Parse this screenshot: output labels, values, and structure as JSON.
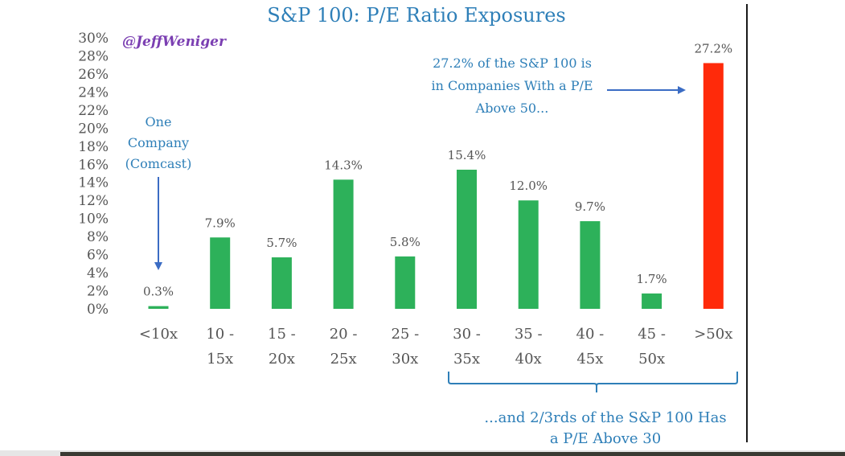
{
  "chart_data": {
    "type": "bar",
    "title": "S&P 100: P/E Ratio Exposures",
    "handle": "@JeffWeniger",
    "ylim": [
      0,
      30
    ],
    "yticks": [
      "0%",
      "2%",
      "4%",
      "6%",
      "8%",
      "10%",
      "12%",
      "14%",
      "16%",
      "18%",
      "20%",
      "22%",
      "24%",
      "26%",
      "28%",
      "30%"
    ],
    "categories": [
      {
        "line1": "<10x",
        "line2": ""
      },
      {
        "line1": "10 -",
        "line2": "15x"
      },
      {
        "line1": "15 -",
        "line2": "20x"
      },
      {
        "line1": "20 -",
        "line2": "25x"
      },
      {
        "line1": "25 -",
        "line2": "30x"
      },
      {
        "line1": "30 -",
        "line2": "35x"
      },
      {
        "line1": "35 -",
        "line2": "40x"
      },
      {
        "line1": "40 -",
        "line2": "45x"
      },
      {
        "line1": "45 -",
        "line2": "50x"
      },
      {
        "line1": ">50x",
        "line2": ""
      }
    ],
    "values": [
      0.3,
      7.9,
      5.7,
      14.3,
      5.8,
      15.4,
      12.0,
      9.7,
      1.7,
      27.2
    ],
    "labels": [
      "0.3%",
      "7.9%",
      "5.7%",
      "14.3%",
      "5.8%",
      "15.4%",
      "12.0%",
      "9.7%",
      "1.7%",
      "27.2%"
    ],
    "highlight_index": 9,
    "colors": {
      "bar": "#2db15a",
      "highlight": "#ff2a0a",
      "title": "#2e7fb8",
      "annotation": "#2e7fb8",
      "handle": "#7b3fb2"
    },
    "annotations": {
      "comcast": [
        "One",
        "Company",
        "(Comcast)"
      ],
      "above50": [
        "27.2% of the S&P 100 is",
        "in Companies With a P/E",
        "Above 50..."
      ],
      "twothirds": [
        "...and 2/3rds of the S&P 100 Has",
        "a P/E Above 30"
      ]
    }
  }
}
